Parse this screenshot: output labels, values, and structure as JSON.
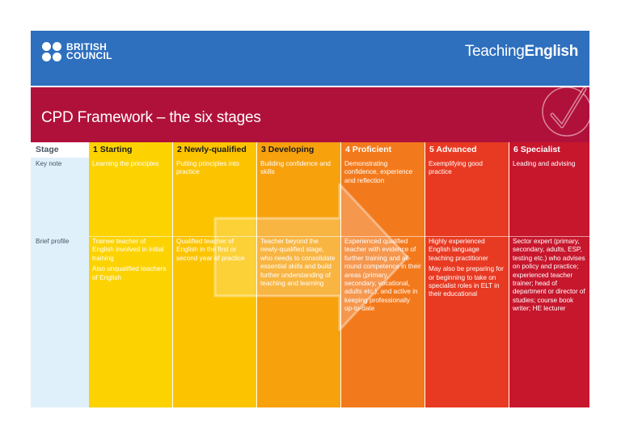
{
  "brand": {
    "british_council_line1": "BRITISH",
    "british_council_line2": "COUNCIL",
    "teaching_prefix": "Teaching",
    "teaching_suffix": "English"
  },
  "title": "CPD Framework – the six stages",
  "table": {
    "stage_header": "Stage",
    "row_labels": {
      "key_note": "Key note",
      "brief_profile": "Brief profile"
    },
    "stages": [
      {
        "header": "1 Starting",
        "key_note": "Learning the principles",
        "profile": [
          "Trainee teacher of English involved in initial training",
          "Also unqualified teachers of English"
        ]
      },
      {
        "header": "2 Newly-qualified",
        "key_note": "Putting principles into practice",
        "profile": [
          "Qualified teacher of English in the first or second year of practice"
        ]
      },
      {
        "header": "3 Developing",
        "key_note": "Building confidence and skills",
        "profile": [
          "Teacher beyond the newly-qualified stage, who needs to consolidate essential skills and build further understanding of teaching and learning"
        ]
      },
      {
        "header": "4 Proficient",
        "key_note": "Demonstrating confidence, experience and reflection",
        "profile": [
          "Experienced qualified teacher with evidence of further training and all-round competence in their areas (primary, secondary, vocational, adults etc.), and active in keeping professionally up-to-date"
        ]
      },
      {
        "header": "5 Advanced",
        "key_note": "Exemplifying good practice",
        "profile": [
          "Highly experienced English language teaching practitioner",
          "May also be preparing for or beginning to take on specialist roles in ELT in their educational"
        ]
      },
      {
        "header": "6 Specialist",
        "key_note": "Leading and advising",
        "profile": [
          "Sector expert (primary, secondary, adults, ESP, testing etc.) who advises on policy and practice; experienced teacher trainer; head of department or director of studies; course book writer; HE lecturer"
        ]
      }
    ]
  },
  "colors": {
    "banner_blue": "#2e6fbe",
    "title_red": "#b0113a",
    "stage_col": "#dff0fb",
    "stage_text": "#4a5563",
    "stage_1": "#fcd300",
    "stage_2": "#fcc400",
    "stage_3": "#f7a10d",
    "stage_4": "#f37a1c",
    "stage_5": "#e83a22",
    "stage_6": "#c7172d"
  }
}
